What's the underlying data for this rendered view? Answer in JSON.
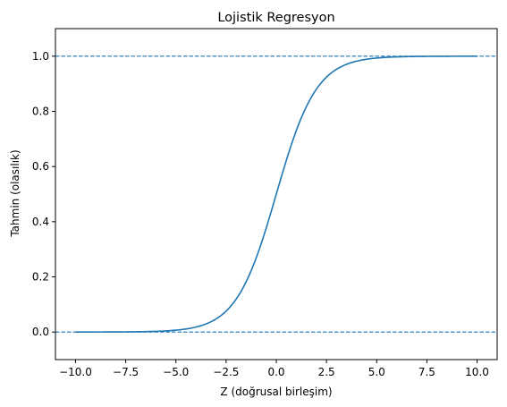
{
  "chart_data": {
    "type": "line",
    "title": "Lojistik Regresyon",
    "xlabel": "Z (doğrusal birleşim)",
    "ylabel": "Tahmin (olasılık)",
    "xlim": [
      -11,
      11
    ],
    "ylim": [
      -0.1,
      1.1
    ],
    "x_ticks": [
      -10.0,
      -7.5,
      -5.0,
      -2.5,
      0.0,
      2.5,
      5.0,
      7.5,
      10.0
    ],
    "x_tick_labels": [
      "−10.0",
      "−7.5",
      "−5.0",
      "−2.5",
      "0.0",
      "2.5",
      "5.0",
      "7.5",
      "10.0"
    ],
    "y_ticks": [
      0.0,
      0.2,
      0.4,
      0.6,
      0.8,
      1.0
    ],
    "y_tick_labels": [
      "0.0",
      "0.2",
      "0.4",
      "0.6",
      "0.8",
      "1.0"
    ],
    "grid": false,
    "series": [
      {
        "color": "#1f77b4",
        "x": [
          -10,
          -9,
          -8,
          -7,
          -6,
          -5,
          -4.5,
          -4,
          -3.5,
          -3,
          -2.5,
          -2,
          -1.5,
          -1,
          -0.5,
          0,
          0.5,
          1,
          1.5,
          2,
          2.5,
          3,
          3.5,
          4,
          4.5,
          5,
          6,
          7,
          8,
          9,
          10
        ],
        "y": [
          5e-05,
          0.00012,
          0.00034,
          0.00091,
          0.00247,
          0.00669,
          0.01099,
          0.01799,
          0.02931,
          0.04743,
          0.07586,
          0.1192,
          0.18243,
          0.26894,
          0.37754,
          0.5,
          0.62246,
          0.73106,
          0.81757,
          0.8808,
          0.92414,
          0.95257,
          0.97069,
          0.98201,
          0.98901,
          0.99331,
          0.99753,
          0.99909,
          0.99966,
          0.99988,
          0.99995
        ]
      }
    ],
    "reference_lines": [
      {
        "y": 0.0,
        "style": "dashed",
        "color": "#1f77b4"
      },
      {
        "y": 1.0,
        "style": "dashed",
        "color": "#1f77b4"
      }
    ]
  }
}
